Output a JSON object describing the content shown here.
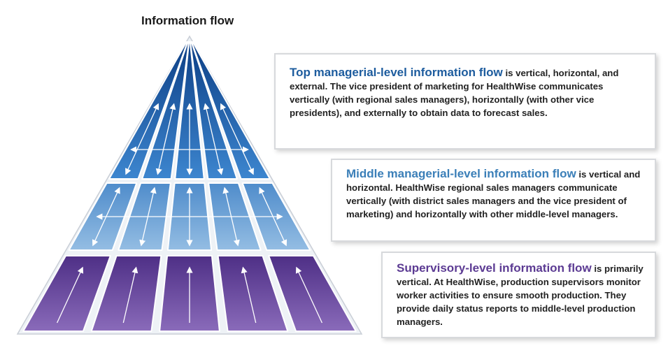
{
  "title": "Information flow",
  "levels": [
    {
      "heading": "Top managerial-level information flow",
      "text": " is vertical, horizontal, and external. The vice president of marketing for HealthWise communicates vertically (with regional sales managers), horizontally (with other vice presidents), and externally to obtain data to forecast sales.",
      "color": "#1d5c9e"
    },
    {
      "heading": "Middle managerial-level information flow",
      "text": " is vertical and horizontal. HealthWise regional sales managers communicate vertically (with district sales managers and the vice president of marketing) and horizontally with other middle-level managers.",
      "color": "#3b7fb8"
    },
    {
      "heading": "Supervisory-level information flow",
      "text": " is primarily vertical. At HealthWise, production supervisors monitor worker activities to ensure smooth production. They provide daily status reports to middle-level production managers.",
      "color": "#5c3b93"
    }
  ],
  "colors": {
    "top_tier": "#2f6fbf",
    "middle_tier": "#6c9fd3",
    "supervisory_tier": "#6a4a9c",
    "arrow": "#ffffff"
  }
}
